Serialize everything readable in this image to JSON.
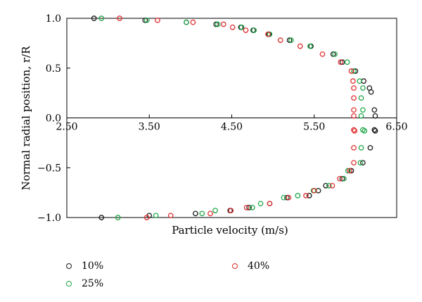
{
  "chart_data": {
    "type": "scatter",
    "xlabel": "Particle velocity (m/s)",
    "ylabel": "Normal radial position, r/R",
    "xlim": [
      2.5,
      6.5
    ],
    "ylim": [
      -1.0,
      1.0
    ],
    "xticks": [
      "2.50",
      "3.50",
      "4.50",
      "5.50",
      "6.50"
    ],
    "yticks": [
      "1.0",
      "0.5",
      "0.0",
      "−0.5",
      "−1.0"
    ],
    "grid": false,
    "legend_position": "bottom",
    "series": [
      {
        "name": "10%",
        "color": "#1a1a1a",
        "points": [
          [
            2.83,
            1.0
          ],
          [
            3.45,
            0.98
          ],
          [
            3.95,
            0.96
          ],
          [
            4.31,
            0.94
          ],
          [
            4.61,
            0.91
          ],
          [
            4.76,
            0.88
          ],
          [
            4.95,
            0.84
          ],
          [
            5.2,
            0.78
          ],
          [
            5.46,
            0.72
          ],
          [
            5.73,
            0.64
          ],
          [
            5.84,
            0.56
          ],
          [
            6.0,
            0.47
          ],
          [
            6.1,
            0.37
          ],
          [
            6.17,
            0.3
          ],
          [
            6.19,
            0.26
          ],
          [
            6.23,
            0.08
          ],
          [
            6.24,
            0.02
          ],
          [
            6.23,
            -0.12
          ],
          [
            6.24,
            -0.13
          ],
          [
            6.18,
            -0.3
          ],
          [
            6.09,
            -0.45
          ],
          [
            5.95,
            -0.53
          ],
          [
            5.84,
            -0.61
          ],
          [
            5.64,
            -0.68
          ],
          [
            5.55,
            -0.73
          ],
          [
            5.44,
            -0.78
          ],
          [
            5.17,
            -0.8
          ],
          [
            4.96,
            -0.86
          ],
          [
            4.71,
            -0.9
          ],
          [
            4.48,
            -0.93
          ],
          [
            4.06,
            -0.96
          ],
          [
            3.5,
            -0.98
          ],
          [
            2.92,
            -1.0
          ]
        ]
      },
      {
        "name": "25%",
        "color": "#22a84a",
        "points": [
          [
            2.92,
            1.0
          ],
          [
            3.47,
            0.98
          ],
          [
            3.95,
            0.96
          ],
          [
            4.33,
            0.94
          ],
          [
            4.62,
            0.91
          ],
          [
            4.77,
            0.88
          ],
          [
            4.96,
            0.84
          ],
          [
            5.22,
            0.78
          ],
          [
            5.45,
            0.72
          ],
          [
            5.75,
            0.64
          ],
          [
            5.9,
            0.56
          ],
          [
            5.98,
            0.47
          ],
          [
            6.05,
            0.37
          ],
          [
            6.09,
            0.3
          ],
          [
            6.07,
            0.2
          ],
          [
            6.09,
            0.08
          ],
          [
            6.07,
            0.02
          ],
          [
            6.09,
            -0.12
          ],
          [
            6.11,
            -0.13
          ],
          [
            6.07,
            -0.3
          ],
          [
            6.06,
            -0.45
          ],
          [
            5.91,
            -0.53
          ],
          [
            5.86,
            -0.61
          ],
          [
            5.68,
            -0.68
          ],
          [
            5.49,
            -0.73
          ],
          [
            5.3,
            -0.78
          ],
          [
            5.13,
            -0.8
          ],
          [
            4.85,
            -0.86
          ],
          [
            4.75,
            -0.9
          ],
          [
            4.3,
            -0.93
          ],
          [
            4.14,
            -0.96
          ],
          [
            3.58,
            -0.98
          ],
          [
            3.12,
            -1.0
          ]
        ]
      },
      {
        "name": "40%",
        "color": "#e03030",
        "points": [
          [
            3.14,
            1.0
          ],
          [
            3.6,
            0.98
          ],
          [
            4.03,
            0.96
          ],
          [
            4.4,
            0.94
          ],
          [
            4.51,
            0.91
          ],
          [
            4.67,
            0.88
          ],
          [
            4.94,
            0.84
          ],
          [
            5.09,
            0.78
          ],
          [
            5.33,
            0.72
          ],
          [
            5.6,
            0.64
          ],
          [
            5.82,
            0.56
          ],
          [
            5.95,
            0.47
          ],
          [
            5.97,
            0.37
          ],
          [
            5.98,
            0.3
          ],
          [
            5.98,
            0.2
          ],
          [
            5.98,
            0.08
          ],
          [
            5.98,
            0.02
          ],
          [
            5.98,
            -0.12
          ],
          [
            5.99,
            -0.13
          ],
          [
            5.98,
            -0.3
          ],
          [
            5.98,
            -0.45
          ],
          [
            5.93,
            -0.53
          ],
          [
            5.81,
            -0.61
          ],
          [
            5.72,
            -0.68
          ],
          [
            5.5,
            -0.73
          ],
          [
            5.4,
            -0.78
          ],
          [
            5.19,
            -0.8
          ],
          [
            4.96,
            -0.86
          ],
          [
            4.68,
            -0.9
          ],
          [
            4.49,
            -0.93
          ],
          [
            4.24,
            -0.96
          ],
          [
            3.76,
            -0.98
          ],
          [
            3.47,
            -1.0
          ]
        ]
      }
    ]
  }
}
